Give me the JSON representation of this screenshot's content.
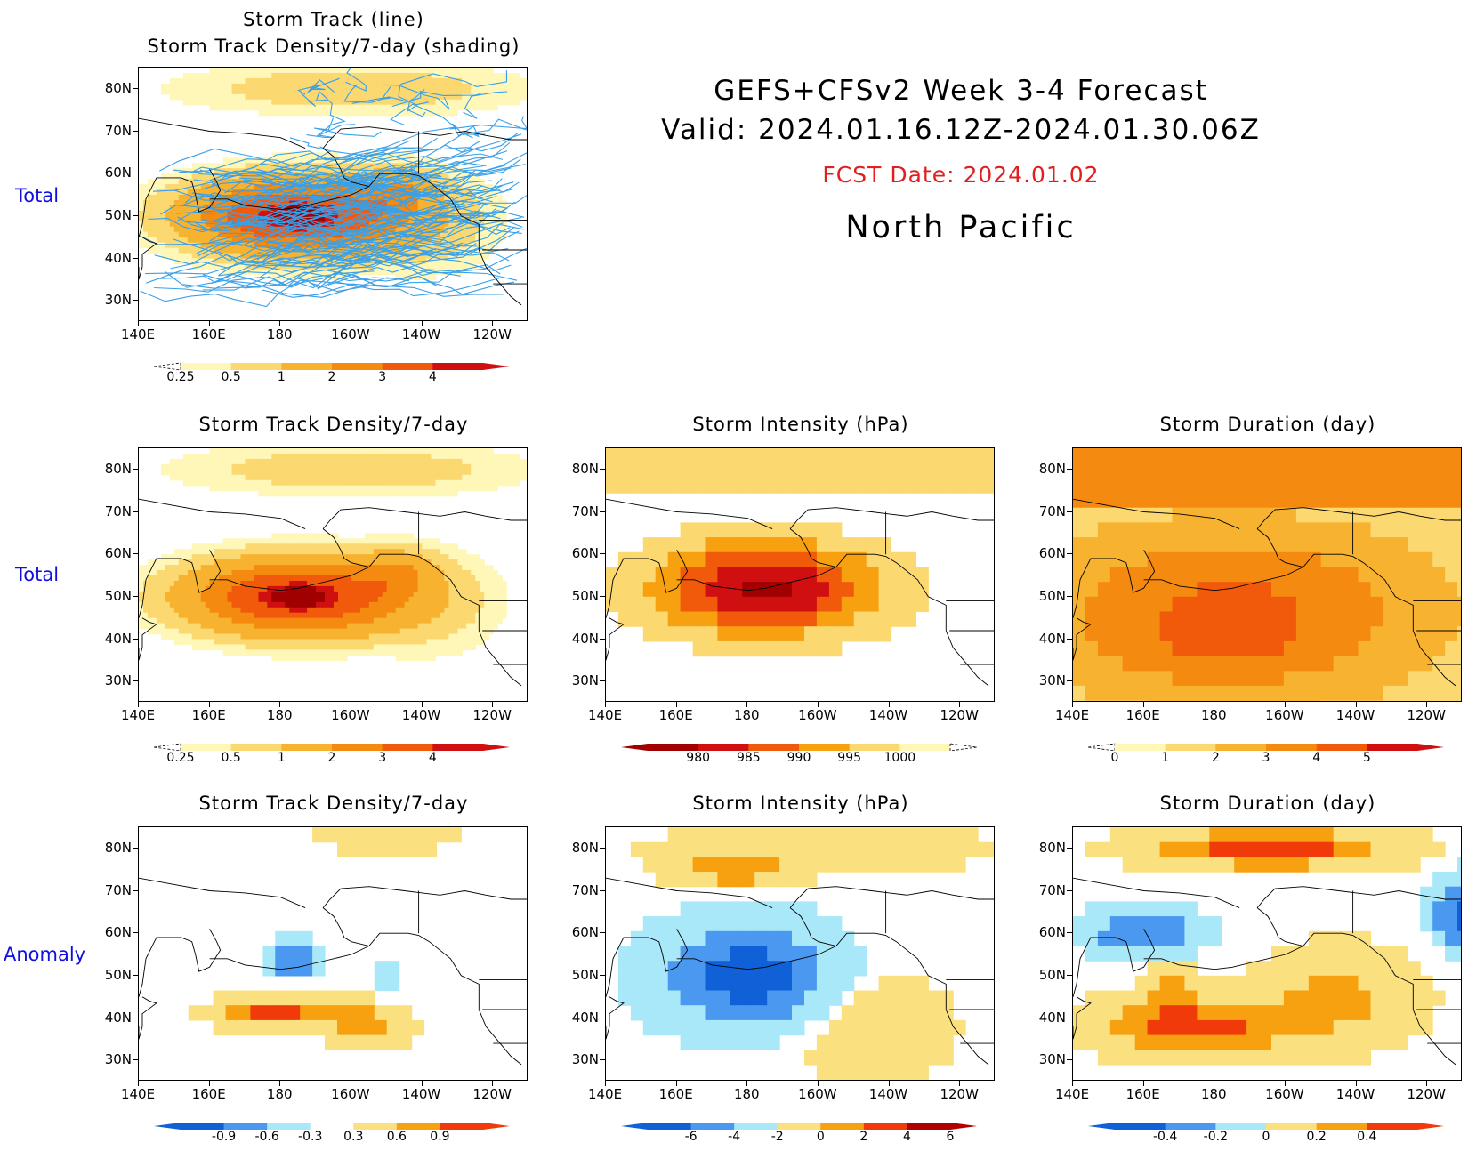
{
  "header": {
    "line1": "GEFS+CFSv2 Week 3-4 Forecast",
    "line2": "Valid: 2024.01.16.12Z-2024.01.30.06Z",
    "fcst_date": "FCST Date: 2024.01.02",
    "region": "North Pacific"
  },
  "row_labels": [
    "Total",
    "Total",
    "Anomaly"
  ],
  "lat_labels": [
    "80N",
    "70N",
    "60N",
    "50N",
    "40N",
    "30N"
  ],
  "lon_labels": [
    "140E",
    "160E",
    "180",
    "160W",
    "140W",
    "120W"
  ],
  "panels": [
    {
      "id": "p0",
      "title1": "Storm Track (line)",
      "title2": "Storm Track Density/7-day (shading)",
      "field": "density",
      "tracks": true,
      "cbar": {
        "colors": [
          "#fff7b8",
          "#fbd870",
          "#f7b230",
          "#f58a10",
          "#f05a0a",
          "#d01010"
        ],
        "labels": [
          "0.25",
          "0.5",
          "1",
          "2",
          "3",
          "4"
        ],
        "open_left": true
      }
    },
    {
      "id": "p1",
      "title1": "Storm Track Density/7-day",
      "field": "density_smooth",
      "tracks": false,
      "cbar": {
        "colors": [
          "#fff7b8",
          "#fbd870",
          "#f7b230",
          "#f58a10",
          "#f05a0a",
          "#d01010"
        ],
        "labels": [
          "0.25",
          "0.5",
          "1",
          "2",
          "3",
          "4"
        ],
        "open_left": true
      }
    },
    {
      "id": "p2",
      "title1": "Storm Intensity (hPa)",
      "field": "intensity",
      "tracks": false,
      "cbar": {
        "colors": [
          "#a00000",
          "#d01010",
          "#f05a0a",
          "#f7a010",
          "#fbd870",
          "#fff7b8"
        ],
        "labels": [
          "980",
          "985",
          "990",
          "995",
          "1000"
        ],
        "open_right": true
      }
    },
    {
      "id": "p3",
      "title1": "Storm Duration (day)",
      "field": "duration",
      "tracks": false,
      "cbar": {
        "colors": [
          "#fff7b8",
          "#fbd870",
          "#f7b230",
          "#f58a10",
          "#f05a0a",
          "#d01010"
        ],
        "labels": [
          "0",
          "1",
          "2",
          "3",
          "4",
          "5"
        ],
        "open_left": true
      }
    },
    {
      "id": "p4",
      "title1": "Storm Track Density/7-day",
      "field": "density_anom",
      "tracks": false,
      "cbar": {
        "colors": [
          "#1060d8",
          "#4a98f0",
          "#a8e8f8",
          "#ffffff",
          "#fbe080",
          "#f7a010",
          "#f03a0a"
        ],
        "labels": [
          "-0.9",
          "-0.6",
          "-0.3",
          "0.3",
          "0.6",
          "0.9"
        ]
      }
    },
    {
      "id": "p5",
      "title1": "Storm Intensity (hPa)",
      "field": "intensity_anom",
      "tracks": false,
      "cbar": {
        "colors": [
          "#1060d8",
          "#4a98f0",
          "#a8e8f8",
          "#fbe080",
          "#f7a010",
          "#f03a0a",
          "#b00000"
        ],
        "labels": [
          "-6",
          "-4",
          "-2",
          "0",
          "2",
          "4",
          "6"
        ]
      }
    },
    {
      "id": "p6",
      "title1": "Storm Duration (day)",
      "field": "duration_anom",
      "tracks": false,
      "cbar": {
        "colors": [
          "#1060d8",
          "#4a98f0",
          "#a8e8f8",
          "#fbe080",
          "#f7a010",
          "#f03a0a"
        ],
        "labels": [
          "-0.4",
          "-0.2",
          "0",
          "0.2",
          "0.4"
        ]
      }
    }
  ]
}
